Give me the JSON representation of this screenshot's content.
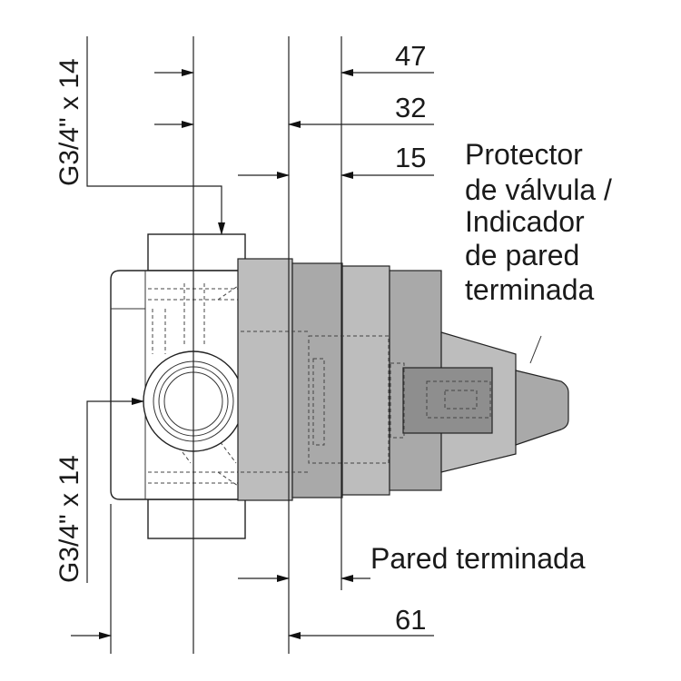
{
  "dimensions": {
    "d47": "47",
    "d32": "32",
    "d15": "15",
    "d61": "61"
  },
  "thread_labels": {
    "top": "G3/4\" x 14",
    "bottom": "G3/4\" x 14"
  },
  "protector_label": {
    "lines": [
      "Protector",
      "de válvula /",
      "Indicador",
      "de pared",
      "terminada"
    ]
  },
  "wall_label": "Pared terminada"
}
